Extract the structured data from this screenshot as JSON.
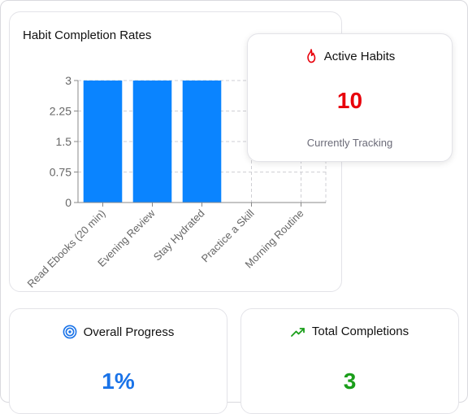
{
  "chart_card": {
    "title": "Habit Completion Rates"
  },
  "chart_data": {
    "type": "bar",
    "categories": [
      "Read Ebooks (20 min)",
      "Evening Review",
      "Stay Hydrated",
      "Practice a Skill",
      "Morning Routine"
    ],
    "values": [
      3,
      3,
      3,
      0,
      0
    ],
    "ylim": [
      0,
      3
    ],
    "yticks": [
      "0",
      "0.75",
      "1.5",
      "2.25",
      "3"
    ],
    "grid": true,
    "bar_color": "#0a84ff"
  },
  "active_card": {
    "icon": "flame-icon",
    "label": "Active Habits",
    "value": "10",
    "subtitle": "Currently Tracking",
    "accent": "#e8000b"
  },
  "progress_card": {
    "icon": "target-icon",
    "label": "Overall Progress",
    "value": "1%",
    "accent": "#1a73e8"
  },
  "total_card": {
    "icon": "trending-up-icon",
    "label": "Total Completions",
    "value": "3",
    "accent": "#1a9e1a"
  }
}
